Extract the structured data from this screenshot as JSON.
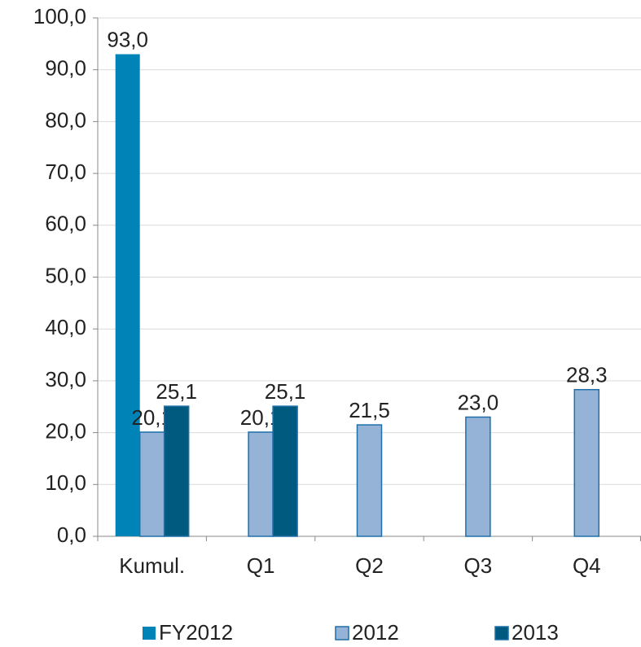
{
  "chart_data": {
    "type": "bar",
    "categories": [
      "Kumul.",
      "Q1",
      "Q2",
      "Q3",
      "Q4"
    ],
    "series": [
      {
        "name": "FY2012",
        "color": "#0083b7",
        "values": [
          93.0,
          null,
          null,
          null,
          null
        ],
        "value_labels": [
          "93,0",
          null,
          null,
          null,
          null
        ]
      },
      {
        "name": "2012",
        "color": "#95b3d7",
        "values": [
          20.1,
          20.1,
          21.5,
          23.0,
          28.3
        ],
        "value_labels": [
          "20,1",
          "20,1",
          "21,5",
          "23,0",
          "28,3"
        ]
      },
      {
        "name": "2013",
        "color": "#005a7f",
        "values": [
          25.1,
          25.1,
          null,
          null,
          null
        ],
        "value_labels": [
          "25,1",
          "25,1",
          null,
          null,
          null
        ]
      }
    ],
    "ylim": [
      0,
      100
    ],
    "yticks": [
      {
        "value": 0,
        "label": "0,0"
      },
      {
        "value": 10,
        "label": "10,0"
      },
      {
        "value": 20,
        "label": "20,0"
      },
      {
        "value": 30,
        "label": "30,0"
      },
      {
        "value": 40,
        "label": "40,0"
      },
      {
        "value": 50,
        "label": "50,0"
      },
      {
        "value": 60,
        "label": "60,0"
      },
      {
        "value": 70,
        "label": "70,0"
      },
      {
        "value": 80,
        "label": "80,0"
      },
      {
        "value": 90,
        "label": "90,0"
      },
      {
        "value": 100,
        "label": "100,0"
      }
    ],
    "grid": true,
    "legend": "bottom"
  }
}
